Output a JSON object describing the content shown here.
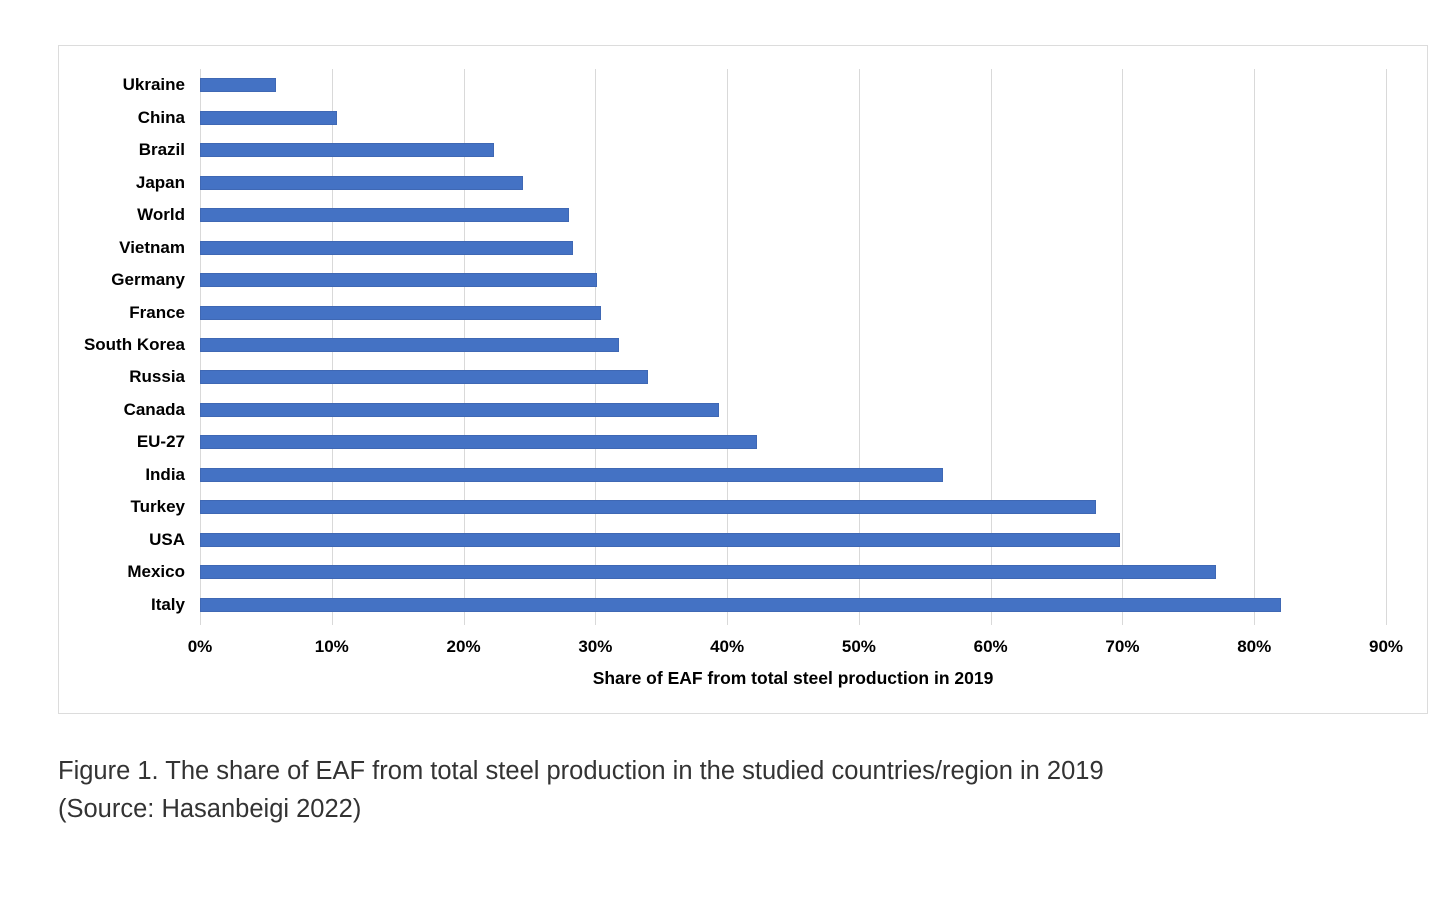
{
  "chart_data": {
    "type": "bar",
    "orientation": "horizontal",
    "categories": [
      "Ukraine",
      "China",
      "Brazil",
      "Japan",
      "World",
      "Vietnam",
      "Germany",
      "France",
      "South Korea",
      "Russia",
      "Canada",
      "EU-27",
      "India",
      "Turkey",
      "USA",
      "Mexico",
      "Italy"
    ],
    "values": [
      5.8,
      10.4,
      22.3,
      24.5,
      28.0,
      28.3,
      30.1,
      30.4,
      31.8,
      34.0,
      39.4,
      42.3,
      56.4,
      68.0,
      69.8,
      77.1,
      82.0
    ],
    "value_unit": "%",
    "title": "",
    "xlabel": "Share of EAF from total steel production in 2019",
    "ylabel": "",
    "xlim": [
      0,
      90
    ],
    "x_ticks": [
      "0%",
      "10%",
      "20%",
      "30%",
      "40%",
      "50%",
      "60%",
      "70%",
      "80%",
      "90%"
    ],
    "x_tick_values": [
      0,
      10,
      20,
      30,
      40,
      50,
      60,
      70,
      80,
      90
    ],
    "grid": "vertical-only",
    "legend": "none",
    "bar_color": "#4472C4",
    "gridline_color": "#d9d9d9"
  },
  "caption": {
    "line1": "Figure 1. The share of EAF from total steel production in the studied countries/region in 2019",
    "line2": "(Source: Hasanbeigi 2022)"
  }
}
